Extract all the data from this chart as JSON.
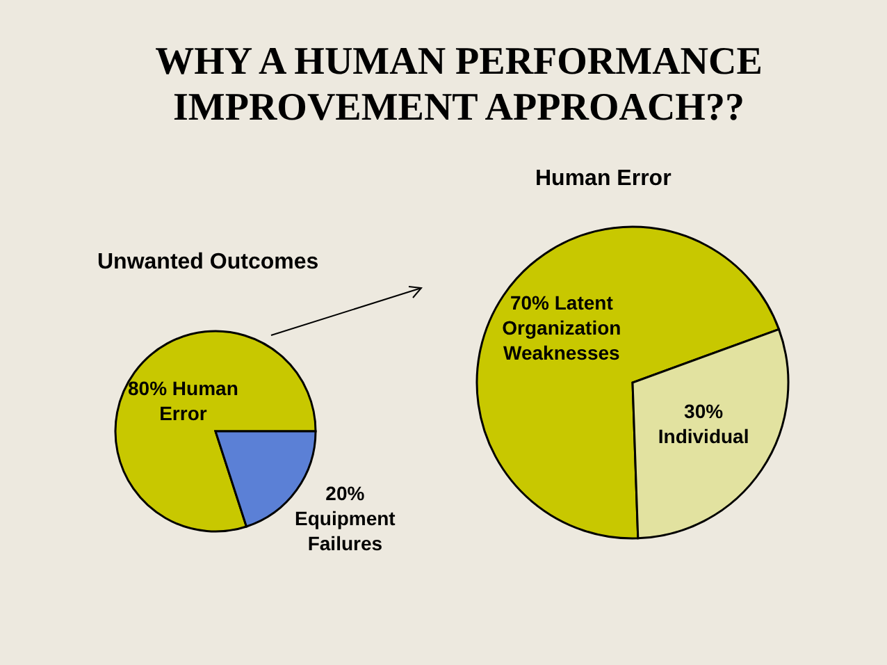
{
  "chart_data": [
    {
      "type": "pie",
      "title": "WHY A HUMAN PERFORMANCE IMPROVEMENT APPROACH??",
      "subtitle": "Unwanted Outcomes",
      "categories": [
        "80% Human Error",
        "20% Equipment Failures"
      ],
      "values": [
        80,
        20
      ],
      "colors": [
        "#c8c800",
        "#5b80d6"
      ]
    },
    {
      "type": "pie",
      "subtitle": "Human Error",
      "categories": [
        "70% Latent Organization Weaknesses",
        "30% Individual"
      ],
      "values": [
        70,
        30
      ],
      "colors": [
        "#c8c800",
        "#e2e2a0"
      ]
    }
  ]
}
